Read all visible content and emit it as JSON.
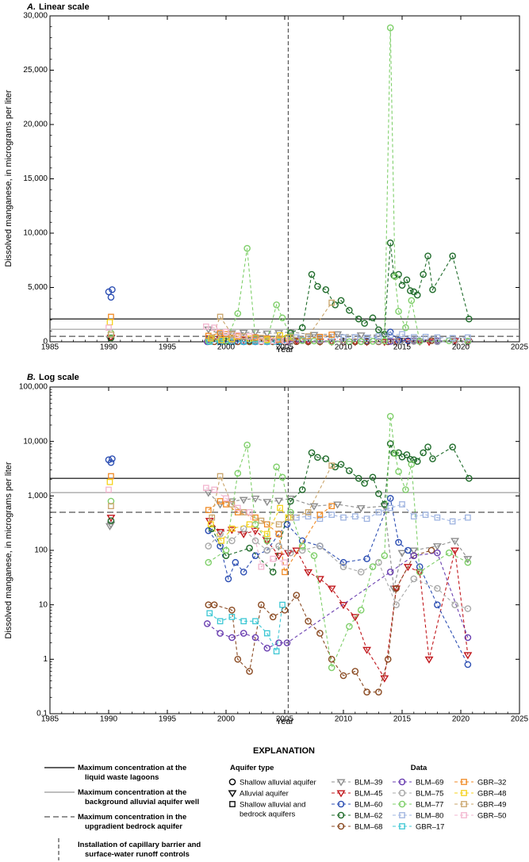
{
  "chart_data": [
    {
      "type": "scatter",
      "panel": "A.",
      "title": "Linear scale",
      "xlabel": "Year",
      "ylabel": "Dissolved manganese, in micrograms per liter",
      "xlim": [
        1985,
        2025
      ],
      "ylim": [
        0,
        30000
      ],
      "yscale": "linear",
      "x_ticks": [
        "1985",
        "1990",
        "1995",
        "2000",
        "2005",
        "2010",
        "2015",
        "2020",
        "2025"
      ],
      "y_ticks": [
        "0",
        "5,000",
        "10,000",
        "15,000",
        "20,000",
        "25,000",
        "30,000"
      ]
    },
    {
      "type": "scatter",
      "panel": "B.",
      "title": "Log scale",
      "xlabel": "Year",
      "ylabel": "Dissolved manganese, in micrograms per liter",
      "xlim": [
        1985,
        2025
      ],
      "ylim": [
        0.1,
        100000
      ],
      "yscale": "log",
      "x_ticks": [
        "1985",
        "1990",
        "1995",
        "2000",
        "2005",
        "2010",
        "2015",
        "2020",
        "2025"
      ],
      "y_ticks": [
        "0.1",
        "1",
        "10",
        "100",
        "1,000",
        "10,000",
        "100,000"
      ]
    }
  ],
  "reference_lines": {
    "lagoon_max": 2100,
    "background_max": 1150,
    "bedrock_max": 500,
    "installation_year": 2005.3
  },
  "colors": {
    "BLM-39": "#8c8c8c",
    "BLM-45": "#c0161b",
    "BLM-60": "#2d4fb3",
    "BLM-62": "#1f6b2a",
    "BLM-68": "#8a4a22",
    "BLM-69": "#6a3fb0",
    "BLM-75": "#a8a8a8",
    "BLM-77": "#7fcf6a",
    "BLM-80": "#9fb4e0",
    "GBR-17": "#3cc7d4",
    "GBR-32": "#f08a24",
    "GBR-48": "#f5d21c",
    "GBR-49": "#c9a46a",
    "GBR-50": "#f2b6cf"
  },
  "series": [
    {
      "name": "BLM–39",
      "key": "BLM-39",
      "marker": "tri",
      "points": [
        [
          1990.1,
          280
        ],
        [
          1990.2,
          300
        ],
        [
          1998.5,
          1150
        ],
        [
          1999.5,
          700
        ],
        [
          2000.5,
          800
        ],
        [
          2001.5,
          850
        ],
        [
          2002.5,
          900
        ],
        [
          2003.5,
          780
        ],
        [
          2004.5,
          820
        ],
        [
          2005.5,
          900
        ],
        [
          2007.5,
          650
        ],
        [
          2009.5,
          700
        ],
        [
          2011.5,
          600
        ],
        [
          2013.5,
          650
        ],
        [
          2014.3,
          20
        ],
        [
          2015,
          90
        ],
        [
          2016,
          100
        ],
        [
          2018,
          120
        ],
        [
          2019.5,
          150
        ],
        [
          2020.6,
          70
        ]
      ]
    },
    {
      "name": "BLM–45",
      "key": "BLM-45",
      "marker": "tri",
      "points": [
        [
          1990.2,
          400
        ],
        [
          1998.6,
          350
        ],
        [
          1999.5,
          220
        ],
        [
          2000.5,
          240
        ],
        [
          2001.5,
          200
        ],
        [
          2002.5,
          230
        ],
        [
          2003.5,
          150
        ],
        [
          2004.5,
          80
        ],
        [
          2005.3,
          90
        ],
        [
          2006,
          100
        ],
        [
          2007,
          40
        ],
        [
          2008,
          30
        ],
        [
          2009,
          20
        ],
        [
          2010,
          10
        ],
        [
          2011,
          6
        ],
        [
          2012,
          1.5
        ],
        [
          2013.5,
          0.45
        ],
        [
          2014.5,
          20
        ],
        [
          2015.5,
          50
        ],
        [
          2016.5,
          40
        ],
        [
          2017.3,
          1
        ],
        [
          2019.5,
          100
        ],
        [
          2020.6,
          1.2
        ]
      ]
    },
    {
      "name": "BLM–60",
      "key": "BLM-60",
      "marker": "circ",
      "points": [
        [
          1990.0,
          4600
        ],
        [
          1990.3,
          4800
        ],
        [
          1990.2,
          4100
        ],
        [
          1998.5,
          230
        ],
        [
          1999.5,
          120
        ],
        [
          2000.2,
          30
        ],
        [
          2000.8,
          60
        ],
        [
          2001.5,
          40
        ],
        [
          2002.5,
          80
        ],
        [
          2003.5,
          100
        ],
        [
          2004.5,
          200
        ],
        [
          2005.2,
          300
        ],
        [
          2006.5,
          150
        ],
        [
          2008,
          120
        ],
        [
          2010,
          60
        ],
        [
          2012,
          70
        ],
        [
          2014,
          900
        ],
        [
          2014.7,
          140
        ],
        [
          2015.5,
          100
        ],
        [
          2016.5,
          50
        ],
        [
          2018,
          10
        ],
        [
          2020.6,
          0.8
        ]
      ]
    },
    {
      "name": "BLM–62",
      "key": "BLM-62",
      "marker": "circ",
      "points": [
        [
          1990.2,
          350
        ],
        [
          1998.8,
          250
        ],
        [
          2000,
          80
        ],
        [
          2002,
          110
        ],
        [
          2004,
          40
        ],
        [
          2005.5,
          800
        ],
        [
          2006.5,
          1300
        ],
        [
          2007.3,
          6200
        ],
        [
          2007.8,
          5100
        ],
        [
          2008.5,
          4800
        ],
        [
          2009.3,
          3400
        ],
        [
          2009.8,
          3800
        ],
        [
          2010.5,
          2900
        ],
        [
          2011.3,
          2100
        ],
        [
          2011.8,
          1700
        ],
        [
          2012.5,
          2200
        ],
        [
          2013,
          1100
        ],
        [
          2013.5,
          700
        ],
        [
          2014,
          9100
        ],
        [
          2014.3,
          6100
        ],
        [
          2014.7,
          6200
        ],
        [
          2015,
          5200
        ],
        [
          2015.4,
          5700
        ],
        [
          2015.7,
          4700
        ],
        [
          2016,
          4600
        ],
        [
          2016.3,
          4300
        ],
        [
          2016.8,
          6200
        ],
        [
          2017.2,
          7900
        ],
        [
          2017.6,
          4800
        ],
        [
          2019.3,
          7900
        ],
        [
          2020.7,
          2100
        ]
      ]
    },
    {
      "name": "BLM–68",
      "key": "BLM-68",
      "marker": "circ",
      "points": [
        [
          1998.5,
          10
        ],
        [
          1999,
          10
        ],
        [
          2000.5,
          8
        ],
        [
          2001,
          1
        ],
        [
          2002,
          0.6
        ],
        [
          2003,
          10
        ],
        [
          2004,
          6
        ],
        [
          2005,
          8
        ],
        [
          2006,
          15
        ],
        [
          2007,
          5
        ],
        [
          2008,
          3
        ],
        [
          2009,
          1
        ],
        [
          2010,
          0.5
        ],
        [
          2011,
          0.6
        ],
        [
          2012,
          0.25
        ],
        [
          2013,
          0.25
        ],
        [
          2013.8,
          1
        ],
        [
          2014.5,
          20
        ],
        [
          2016,
          80
        ],
        [
          2017.5,
          100
        ]
      ]
    },
    {
      "name": "BLM–69",
      "key": "BLM-69",
      "marker": "circ",
      "points": [
        [
          1998.4,
          4.5
        ],
        [
          1999.5,
          3
        ],
        [
          2000.5,
          2.5
        ],
        [
          2001.5,
          3
        ],
        [
          2002.5,
          2.5
        ],
        [
          2003.5,
          1.6
        ],
        [
          2004.5,
          2
        ],
        [
          2005.2,
          2
        ],
        [
          2014,
          40
        ],
        [
          2016,
          80
        ],
        [
          2018,
          90
        ],
        [
          2020.6,
          2.5
        ]
      ]
    },
    {
      "name": "BLM–75",
      "key": "BLM-75",
      "marker": "circ",
      "points": [
        [
          1998.5,
          120
        ],
        [
          1999.5,
          200
        ],
        [
          2000.5,
          150
        ],
        [
          2001.5,
          250
        ],
        [
          2002.5,
          150
        ],
        [
          2003.5,
          100
        ],
        [
          2004.5,
          120
        ],
        [
          2005.5,
          90
        ],
        [
          2006.5,
          100
        ],
        [
          2008,
          120
        ],
        [
          2010,
          50
        ],
        [
          2011.5,
          40
        ],
        [
          2013,
          60
        ],
        [
          2014.5,
          10
        ],
        [
          2016,
          30
        ],
        [
          2018,
          20
        ],
        [
          2019.5,
          10
        ],
        [
          2020.6,
          8.5
        ]
      ]
    },
    {
      "name": "BLM–77",
      "key": "BLM-77",
      "marker": "circ",
      "points": [
        [
          1990.2,
          800
        ],
        [
          1998.5,
          60
        ],
        [
          2000,
          100
        ],
        [
          2001,
          2600
        ],
        [
          2001.8,
          8600
        ],
        [
          2002.5,
          300
        ],
        [
          2003.5,
          150
        ],
        [
          2004.3,
          3400
        ],
        [
          2004.8,
          2200
        ],
        [
          2005.5,
          500
        ],
        [
          2006.5,
          120
        ],
        [
          2007.5,
          80
        ],
        [
          2009,
          0.7
        ],
        [
          2010.5,
          4
        ],
        [
          2011.5,
          8
        ],
        [
          2012.5,
          50
        ],
        [
          2013.5,
          80
        ],
        [
          2014,
          28900
        ],
        [
          2014.4,
          6000
        ],
        [
          2014.7,
          2800
        ],
        [
          2015.3,
          1300
        ],
        [
          2015.8,
          3800
        ],
        [
          2016.5,
          40
        ],
        [
          2019,
          90
        ],
        [
          2020.6,
          60
        ]
      ]
    },
    {
      "name": "BLM–80",
      "key": "BLM-80",
      "marker": "sq",
      "points": [
        [
          2006,
          400
        ],
        [
          2007,
          420
        ],
        [
          2008,
          380
        ],
        [
          2009,
          450
        ],
        [
          2010,
          400
        ],
        [
          2011,
          420
        ],
        [
          2012,
          380
        ],
        [
          2013,
          500
        ],
        [
          2014,
          600
        ],
        [
          2015,
          700
        ],
        [
          2016,
          420
        ],
        [
          2017,
          450
        ],
        [
          2018,
          400
        ],
        [
          2019.3,
          340
        ],
        [
          2020.6,
          400
        ]
      ]
    },
    {
      "name": "GBR–17",
      "key": "GBR-17",
      "marker": "sq",
      "points": [
        [
          1998.6,
          7
        ],
        [
          1999.5,
          5
        ],
        [
          2000.5,
          6
        ],
        [
          2001.5,
          5
        ],
        [
          2002.5,
          5
        ],
        [
          2003.5,
          3
        ],
        [
          2004.3,
          1.4
        ],
        [
          2004.8,
          10
        ]
      ]
    },
    {
      "name": "GBR–32",
      "key": "GBR-32",
      "marker": "sq",
      "points": [
        [
          1990.2,
          2300
        ],
        [
          1998.5,
          550
        ],
        [
          1999.5,
          800
        ],
        [
          2000,
          700
        ],
        [
          2001,
          500
        ],
        [
          2002.5,
          400
        ],
        [
          2003.5,
          300
        ],
        [
          2004.5,
          200
        ],
        [
          2005,
          40
        ],
        [
          2008,
          450
        ],
        [
          2009,
          650
        ]
      ]
    },
    {
      "name": "GBR–48",
      "key": "GBR-48",
      "marker": "sq",
      "points": [
        [
          1990.1,
          1800
        ],
        [
          1998.7,
          300
        ],
        [
          1999.6,
          150
        ],
        [
          2000.5,
          250
        ],
        [
          2002,
          300
        ],
        [
          2003.5,
          200
        ],
        [
          2004.6,
          600
        ],
        [
          2005.3,
          400
        ]
      ]
    },
    {
      "name": "GBR–49",
      "key": "GBR-49",
      "marker": "sq",
      "points": [
        [
          1990.2,
          650
        ],
        [
          1998.8,
          400
        ],
        [
          1999.5,
          2300
        ],
        [
          2000.5,
          700
        ],
        [
          2001.5,
          500
        ],
        [
          2003,
          350
        ],
        [
          2004.5,
          300
        ],
        [
          2005.5,
          400
        ],
        [
          2007,
          500
        ],
        [
          2009,
          3600
        ]
      ]
    },
    {
      "name": "GBR–50",
      "key": "GBR-50",
      "marker": "sq",
      "points": [
        [
          1990.0,
          1300
        ],
        [
          1998.3,
          1400
        ],
        [
          1999,
          1300
        ],
        [
          2000,
          900
        ],
        [
          2001,
          600
        ],
        [
          2002,
          500
        ],
        [
          2003,
          50
        ],
        [
          2004,
          70
        ],
        [
          2005,
          60
        ]
      ]
    }
  ],
  "explanation": {
    "title": "EXPLANATION",
    "lines": [
      {
        "key": "lagoon",
        "text1": "Maximum concentration at the",
        "text2": "liquid waste lagoons"
      },
      {
        "key": "background",
        "text1": "Maximum concentration at the",
        "text2": "background alluvial aquifer well"
      },
      {
        "key": "bedrock",
        "text1": "Maximum concentration in the",
        "text2": "upgradient bedrock aquifer"
      },
      {
        "key": "install",
        "text1": "Installation of capillary barrier and",
        "text2": "surface-water runoff controls"
      }
    ],
    "aquifer_title": "Aquifer type",
    "aquifer_types": [
      {
        "marker": "circ",
        "text1": "Shallow alluvial aquifer",
        "text2": ""
      },
      {
        "marker": "tri",
        "text1": "Alluvial aquifer",
        "text2": ""
      },
      {
        "marker": "sq",
        "text1": "Shallow alluvial and",
        "text2": "bedrock aquifers"
      }
    ],
    "data_title": "Data"
  }
}
